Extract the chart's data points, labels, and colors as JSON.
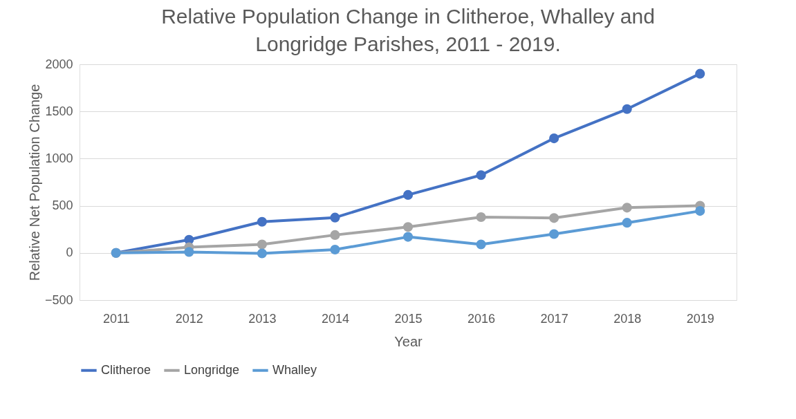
{
  "chart_data": {
    "type": "line",
    "title": "Relative Population Change in Clitheroe, Whalley and Longridge Parishes, 2011 - 2019.",
    "xlabel": "Year",
    "ylabel": "Relative Net Population Change",
    "categories": [
      "2011",
      "2012",
      "2013",
      "2014",
      "2015",
      "2016",
      "2017",
      "2018",
      "2019"
    ],
    "series": [
      {
        "name": "Clitheroe",
        "color": "#4472c4",
        "values": [
          0,
          140,
          330,
          375,
          615,
          825,
          1215,
          1525,
          1900
        ]
      },
      {
        "name": "Longridge",
        "color": "#a5a5a5",
        "values": [
          0,
          60,
          90,
          190,
          275,
          380,
          370,
          480,
          500
        ]
      },
      {
        "name": "Whalley",
        "color": "#5b9bd5",
        "values": [
          0,
          10,
          -5,
          35,
          170,
          90,
          200,
          320,
          445
        ]
      }
    ],
    "ylim": [
      -500,
      2000
    ],
    "yticks": [
      -500,
      0,
      500,
      1000,
      1500,
      2000
    ],
    "grid": "y",
    "legend": "bottom",
    "marker": "circle",
    "line_style": "solid"
  }
}
